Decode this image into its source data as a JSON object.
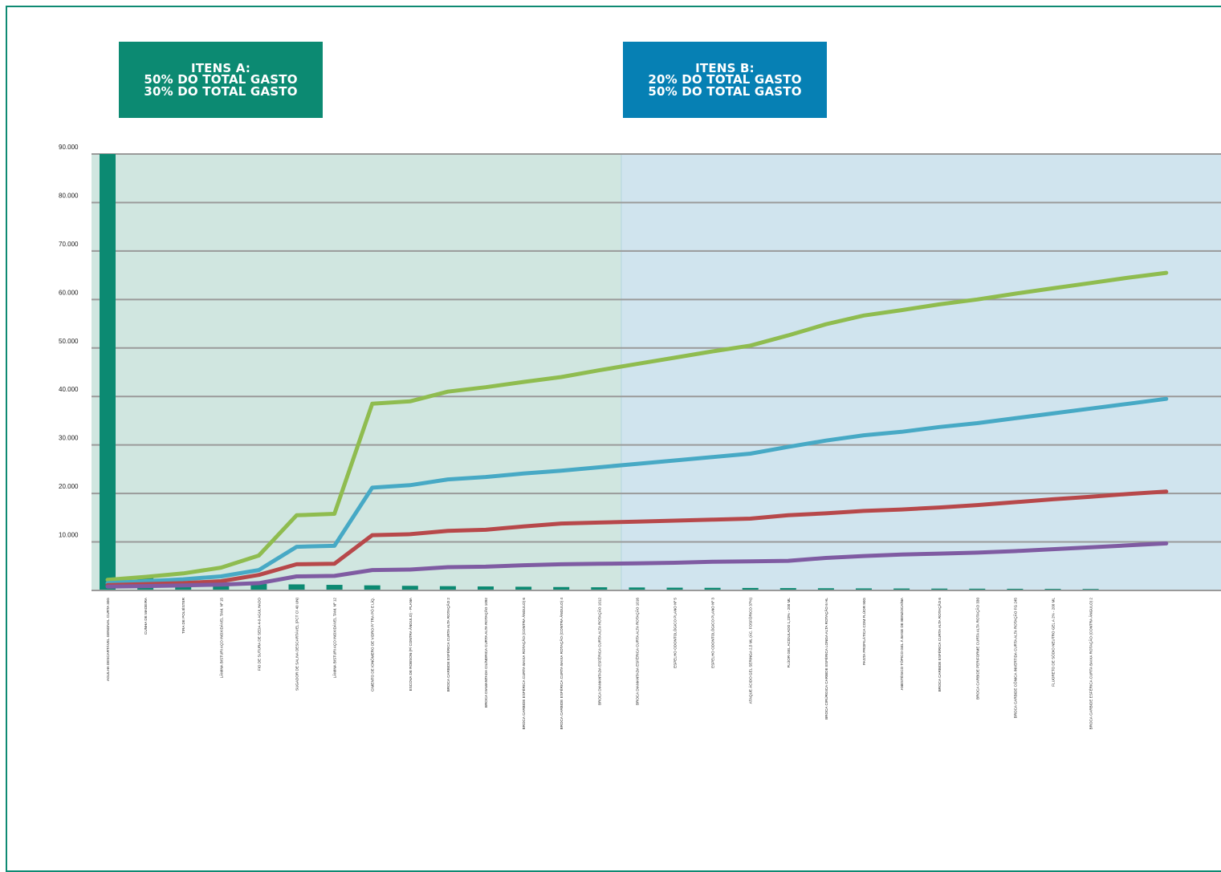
{
  "colors": {
    "frame": "#0f8a73",
    "zone_a_bg": "#d0e6e0",
    "zone_b_bg": "#d0e4ee",
    "box_a": "#0c8a72",
    "box_b": "#0680b4",
    "bar": "#0c8a72",
    "grid": "#9a9a9a"
  },
  "header": {
    "box_a": {
      "line1": "ITENS A:",
      "line2": "50% DO TOTAL GASTO",
      "line3": "30% DO TOTAL GASTO"
    },
    "box_b": {
      "line1": "ITENS B:",
      "line2": "20% DO TOTAL GASTO",
      "line3": "50% DO TOTAL GASTO"
    }
  },
  "chart_data": {
    "type": "line",
    "ylim": [
      0,
      90000
    ],
    "y_ticks": [
      "10.000",
      "20.000",
      "30.000",
      "40.000",
      "50.000",
      "60.000",
      "70.000",
      "80.000",
      "90.000"
    ],
    "categories": [
      "AGULHA DESCARTÁVEL GENGIVAL CURTA 30G",
      "CUNHA DE MADEIRA",
      "TIRA DE POLIÉSTER",
      "LÂMINA BISTURI AÇO INOXIDÁVEL TAM. Nº 15",
      "FIO DE SUTURA DE SEDA 4-0 AGULHADO",
      "SUGADOR DE SALIVA DESCARTÁVEL (PCT C/ 40 UN)",
      "LÂMINA BISTURI AÇO INOXIDÁVEL TAM. Nº 12",
      "CIMENTO DE IONÔMERO DE VIDRO P/ TRA PÓ E LÍQ.",
      "ESCOVA DE ROBSON (P/ CONTRA ÂNGULO) - PLANA",
      "BROCA CARBIDE ESFÉRICA CURTA ALTA ROTAÇÃO 2",
      "BROCA DIAMANTADA CILÍNDRICA CURTA ALTA ROTAÇÃO 1092",
      "BROCA CARBIDE ESFÉRICA CURTA BAIXA ROTAÇÃO (CONTRA ÂNGULO) 6",
      "BROCA CARBIDE ESFÉRICA CURTA BAIXA ROTAÇÃO (CONTRA ÂNGULO) 4",
      "BROCA DIAMANTADA ESFÉRICA CURTA ALTA ROTAÇÃO 1012",
      "BROCA DIAMANTADA ESFÉRICA CURTA ALTA ROTAÇÃO 1016",
      "ESPELHO ODONTOLÓGICO PLANO Nº 5",
      "ESPELHO ODONTOLÓGICO PLANO Nº 3",
      "ATAQUE ÁCIDO GEL SERINGA 2,5 ML (ÁC. FOSFÓRICO 37%)",
      "FLÚOR GEL ACIDULADO 1,23% - 200 ML",
      "BROCA CIRÚRGICA CARBIDE ESFÉRICA LONGA ALTA ROTAÇÃO 6 HL",
      "PASTA PROFILÁTICA COM FLÚOR 90G",
      "ANESTÉSICO TÓPICO GEL À BASE DE BENZOCAÍNA",
      "BROCA CARBIDE ESFÉRICA CURTA ALTA ROTAÇÃO 6",
      "BROCA CARBIDE PERIFORME CURTA ALTA ROTAÇÃO 330",
      "BROCA CARBIDE CÔNICA INVERTIDA CURTA ALTA ROTAÇÃO FG 245",
      "FLUORETO DE SÓDIO NEUTRO GEL A 2% - 200 ML",
      "BROCA CARBIDE ESFÉRICA CURTA BAIXA ROTAÇÃO (CONTRA ÂNGULO) 2"
    ],
    "bars": [
      90000,
      2800,
      1900,
      1500,
      1350,
      1250,
      1150,
      1050,
      950,
      880,
      820,
      760,
      700,
      650,
      610,
      570,
      540,
      510,
      480,
      450,
      420,
      400,
      380,
      360,
      340,
      320,
      300
    ],
    "series": [
      {
        "name": "",
        "color": "#8fbc4f",
        "x": [
          0,
          1,
          2,
          3,
          4,
          5,
          6,
          7,
          8,
          9,
          10,
          11,
          12,
          13,
          14,
          15,
          16,
          17,
          18,
          19,
          20,
          21,
          22,
          23,
          24,
          25,
          26,
          27,
          28
        ],
        "values": [
          2200,
          2800,
          3500,
          4700,
          7200,
          15500,
          15800,
          38500,
          39000,
          41000,
          41900,
          43000,
          44000,
          45400,
          46700,
          48000,
          49300,
          50500,
          52600,
          54900,
          56700,
          57800,
          59000,
          60000,
          61200,
          62300,
          63400,
          64500,
          65500
        ]
      },
      {
        "name": "",
        "color": "#47a9c5",
        "x": [
          0,
          1,
          2,
          3,
          4,
          5,
          6,
          7,
          8,
          9,
          10,
          11,
          12,
          13,
          14,
          15,
          16,
          17,
          18,
          19,
          20,
          21,
          22,
          23,
          24,
          25,
          26,
          27,
          28
        ],
        "values": [
          1500,
          1900,
          2300,
          2900,
          4200,
          9000,
          9200,
          21200,
          21700,
          22900,
          23400,
          24100,
          24700,
          25400,
          26100,
          26800,
          27500,
          28200,
          29600,
          30900,
          32000,
          32700,
          33700,
          34500,
          35500,
          36500,
          37500,
          38500,
          39500
        ]
      },
      {
        "name": "",
        "color": "#b7484a",
        "x": [
          0,
          1,
          2,
          3,
          4,
          5,
          6,
          7,
          8,
          9,
          10,
          11,
          12,
          13,
          14,
          15,
          16,
          17,
          18,
          19,
          20,
          21,
          22,
          23,
          24,
          25,
          26,
          27,
          28
        ],
        "values": [
          1100,
          1300,
          1500,
          1900,
          3200,
          5400,
          5500,
          11400,
          11600,
          12300,
          12500,
          13200,
          13800,
          14000,
          14200,
          14400,
          14600,
          14800,
          15500,
          15900,
          16400,
          16700,
          17100,
          17600,
          18200,
          18800,
          19300,
          19900,
          20400
        ]
      },
      {
        "name": "",
        "color": "#7f5ba2",
        "x": [
          0,
          1,
          2,
          3,
          4,
          5,
          6,
          7,
          8,
          9,
          10,
          11,
          12,
          13,
          14,
          15,
          16,
          17,
          18,
          19,
          20,
          21,
          22,
          23,
          24,
          25,
          26,
          27,
          28
        ],
        "values": [
          800,
          900,
          1050,
          1200,
          1500,
          2900,
          3000,
          4200,
          4300,
          4800,
          4900,
          5200,
          5400,
          5500,
          5600,
          5700,
          5900,
          6000,
          6100,
          6700,
          7100,
          7400,
          7600,
          7800,
          8100,
          8500,
          8900,
          9300,
          9700
        ]
      }
    ]
  }
}
